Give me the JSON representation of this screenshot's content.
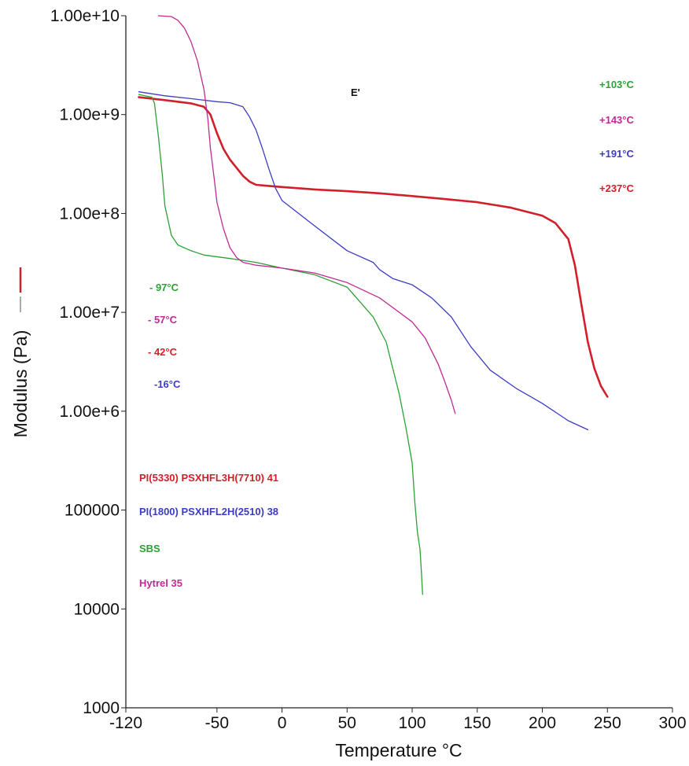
{
  "chart_data": {
    "type": "line",
    "title": "",
    "xlabel": "Temperature °C",
    "ylabel": "Modulus (Pa)",
    "yscale": "log",
    "xlim": [
      -120,
      300
    ],
    "ylim": [
      1000,
      10000000000
    ],
    "grid": false,
    "x_ticks": [
      "-120",
      "-50",
      "0",
      "50",
      "100",
      "150",
      "200",
      "250",
      "300"
    ],
    "y_ticks": [
      "1000",
      "10000",
      "100000",
      "1.00e+6",
      "1.00e+7",
      "1.00e+8",
      "1.00e+9",
      "1.00e+10"
    ],
    "curve_label": "E'",
    "series": [
      {
        "color": "#d21f2a",
        "x": [
          -110,
          -90,
          -70,
          -60,
          -55,
          -50,
          -45,
          -40,
          -35,
          -30,
          -25,
          -20,
          -10,
          0,
          25,
          50,
          75,
          100,
          125,
          150,
          175,
          200,
          210,
          220,
          225,
          230,
          235,
          240,
          245,
          250
        ],
        "y": [
          1500000000,
          1400000000,
          1300000000,
          1200000000,
          1000000000,
          650000000,
          450000000,
          350000000,
          290000000,
          240000000,
          210000000,
          195000000,
          190000000,
          185000000,
          175000000,
          168000000,
          160000000,
          150000000,
          140000000,
          130000000,
          115000000,
          95000000,
          80000000,
          55000000,
          30000000,
          12000000,
          5000000,
          2700000,
          1800000,
          1400000
        ]
      },
      {
        "color": "#3c3cc4",
        "x": [
          -110,
          -90,
          -70,
          -50,
          -40,
          -30,
          -25,
          -20,
          -15,
          -10,
          -5,
          0,
          25,
          50,
          70,
          75,
          85,
          100,
          115,
          130,
          145,
          160,
          180,
          200,
          220,
          235
        ],
        "y": [
          1700000000,
          1550000000,
          1450000000,
          1350000000,
          1320000000,
          1200000000,
          950000000,
          700000000,
          450000000,
          280000000,
          180000000,
          135000000,
          75000000,
          42000000,
          32000000,
          27000000,
          22000000,
          19000000,
          14000000,
          9000000,
          4500000,
          2600000,
          1700000,
          1200000,
          800000,
          650000
        ]
      },
      {
        "color": "#2ea037",
        "x": [
          -110,
          -100,
          -98,
          -95,
          -92,
          -90,
          -85,
          -80,
          -70,
          -60,
          -40,
          -20,
          0,
          25,
          50,
          70,
          80,
          90,
          95,
          100,
          102,
          104,
          106,
          107,
          108
        ],
        "y": [
          1600000000,
          1500000000,
          1300000000,
          600000000,
          250000000,
          120000000,
          60000000,
          48000000,
          42000000,
          38000000,
          35000000,
          32000000,
          28000000,
          24000000,
          18000000,
          9000000,
          5000000,
          1500000,
          700000,
          300000,
          120000,
          60000,
          40000,
          25000,
          14000
        ]
      },
      {
        "color": "#c02a96",
        "x": [
          -95,
          -85,
          -80,
          -75,
          -70,
          -65,
          -60,
          -57,
          -55,
          -52,
          -50,
          -45,
          -40,
          -35,
          -30,
          -20,
          0,
          25,
          50,
          75,
          100,
          110,
          120,
          125,
          130,
          133
        ],
        "y": [
          10000000000,
          9800000000,
          9000000000,
          7500000000,
          5500000000,
          3500000000,
          1800000000,
          900000000,
          450000000,
          220000000,
          130000000,
          70000000,
          45000000,
          36000000,
          32000000,
          30000000,
          28000000,
          25000000,
          20000000,
          14000000,
          8000000,
          5500000,
          3000000,
          2000000,
          1300000,
          950000
        ]
      }
    ],
    "annotations": {
      "high_temps": [
        {
          "text": "+103°C",
          "color": "#2ea037"
        },
        {
          "text": "+143°C",
          "color": "#c02a96"
        },
        {
          "text": "+191°C",
          "color": "#3c3cc4"
        },
        {
          "text": "+237°C",
          "color": "#d21f2a"
        }
      ],
      "low_temps": [
        {
          "text": "- 97°C",
          "color": "#2ea037"
        },
        {
          "text": "- 57°C",
          "color": "#c02a96"
        },
        {
          "text": "- 42°C",
          "color": "#d21f2a"
        },
        {
          "text": "-16°C",
          "color": "#3c3cc4"
        }
      ],
      "sample_names": [
        {
          "text": "PI(5330) PSXHFL3H(7710)  41",
          "color": "#d21f2a"
        },
        {
          "text": "PI(1800) PSXHFL2H(2510) 38",
          "color": "#3c3cc4"
        },
        {
          "text": "SBS",
          "color": "#2ea037"
        },
        {
          "text": "Hytrel 35",
          "color": "#c02a96"
        }
      ]
    }
  }
}
